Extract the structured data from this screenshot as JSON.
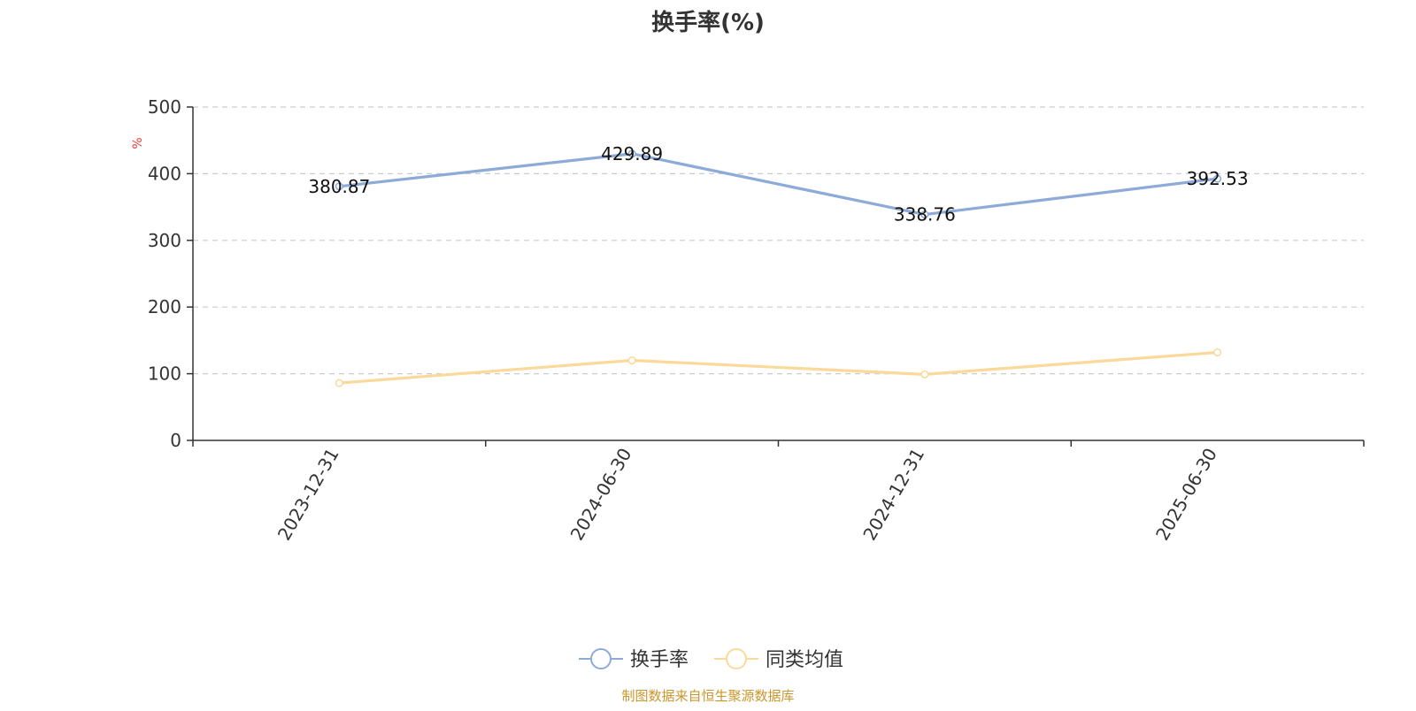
{
  "colors": {
    "series_turnover": "#8eaad8",
    "series_peer_avg": "#fbd99a",
    "unit": "#e83a3a",
    "source": "#c9962b",
    "axis": "#333333",
    "grid": "#cccccc"
  },
  "chart_data": {
    "type": "line",
    "title": "换手率(%)",
    "ylabel": "%",
    "xlabel": "",
    "categories": [
      "2023-12-31",
      "2024-06-30",
      "2024-12-31",
      "2025-06-30"
    ],
    "ylim": [
      0,
      500
    ],
    "yticks": [
      0,
      100,
      200,
      300,
      400,
      500
    ],
    "grid": true,
    "legend_position": "bottom-center",
    "series": [
      {
        "name": "换手率",
        "values": [
          380.87,
          429.89,
          338.76,
          392.53
        ],
        "labels": [
          "380.87",
          "429.89",
          "338.76",
          "392.53"
        ],
        "color": "#8eaad8"
      },
      {
        "name": "同类均值",
        "values": [
          86,
          120,
          99,
          132
        ],
        "color": "#fbd99a"
      }
    ]
  },
  "footer": {
    "source": "制图数据来自恒生聚源数据库"
  }
}
